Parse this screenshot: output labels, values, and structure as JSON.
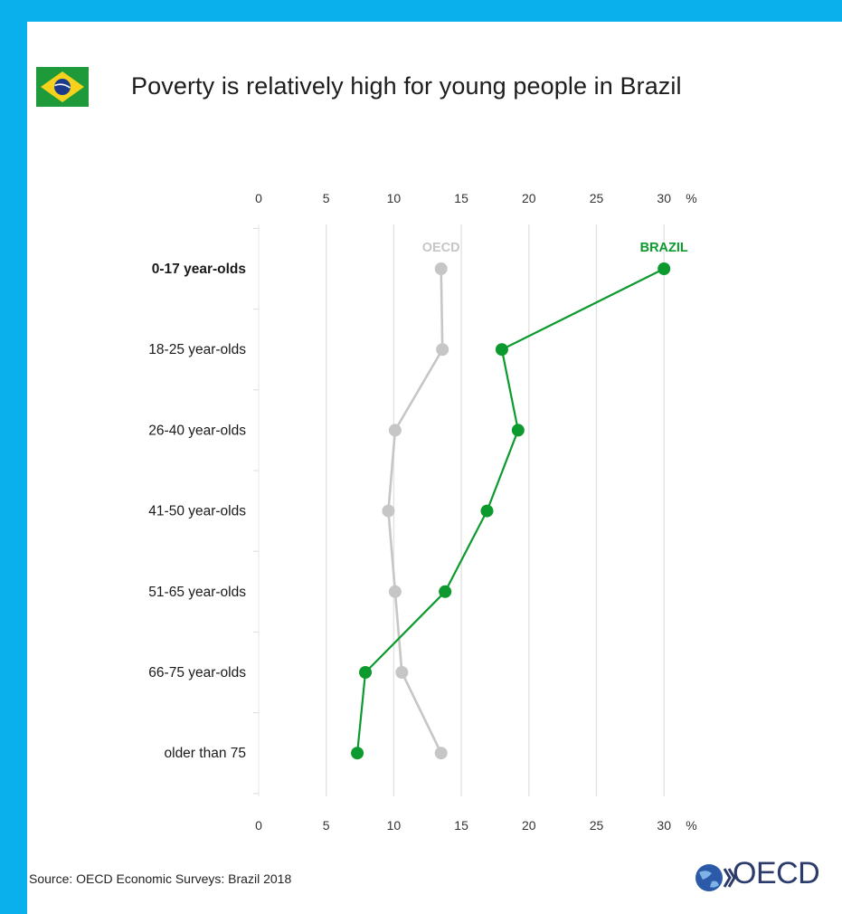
{
  "header": {
    "title": "Poverty is relatively high for young people in Brazil",
    "flag_icon": "brazil-flag-icon"
  },
  "footer": {
    "source": "Source: OECD Economic Surveys: Brazil 2018",
    "logo_text": "OECD",
    "logo_icon": "oecd-globe-icon"
  },
  "chart_data": {
    "type": "line",
    "orientation": "horizontal-values",
    "categories": [
      "0-17 year-olds",
      "18-25 year-olds",
      "26-40 year-olds",
      "41-50 year-olds",
      "51-65 year-olds",
      "66-75 year-olds",
      "older than 75"
    ],
    "bold_categories": [
      "0-17 year-olds"
    ],
    "series": [
      {
        "name": "OECD",
        "color": "#c6c6c6",
        "values": [
          13.5,
          13.6,
          10.1,
          9.6,
          10.1,
          10.6,
          13.5
        ]
      },
      {
        "name": "BRAZIL",
        "color": "#0c9a2f",
        "values": [
          30.0,
          18.0,
          19.2,
          16.9,
          13.8,
          7.9,
          7.3
        ]
      }
    ],
    "value_axis": {
      "min": 0,
      "max": 30,
      "ticks": [
        0,
        5,
        10,
        15,
        20,
        25,
        30
      ],
      "unit": "%",
      "position": "top and bottom"
    },
    "grid": true
  }
}
